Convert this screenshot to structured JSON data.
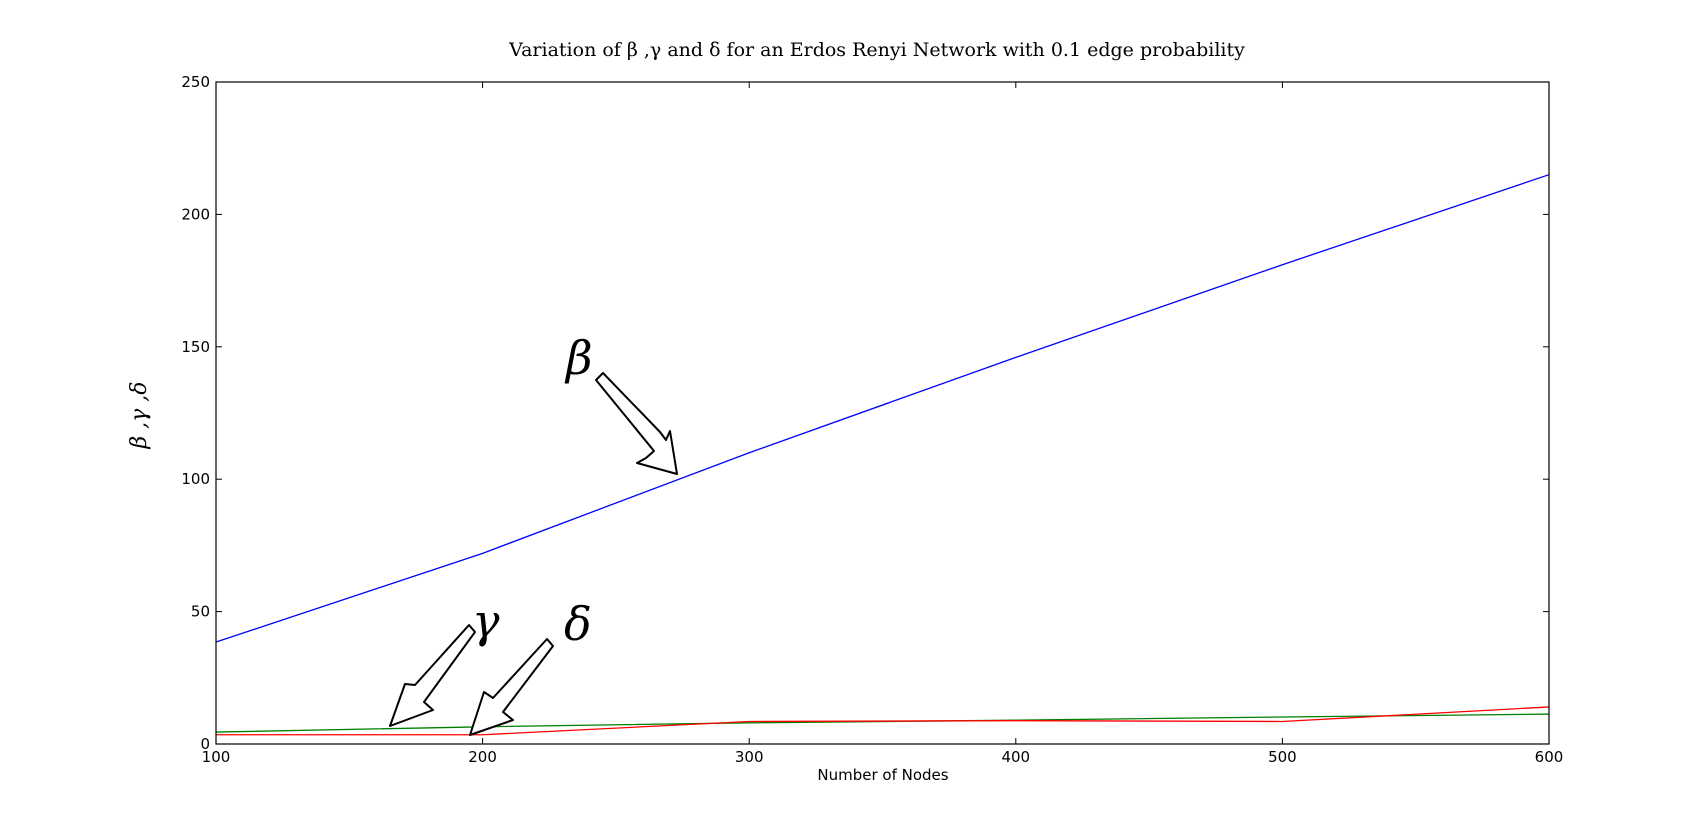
{
  "chart_data": {
    "type": "line",
    "title": "Variation of β ,γ and δ for an Erdos Renyi Network with 0.1 edge probability",
    "xlabel": "Number of Nodes",
    "ylabel": "β ,γ ,δ",
    "xlim": [
      100,
      600
    ],
    "ylim": [
      0,
      250
    ],
    "xticks": [
      100,
      200,
      300,
      400,
      500,
      600
    ],
    "yticks": [
      0,
      50,
      100,
      150,
      200,
      250
    ],
    "grid": false,
    "legend": "none",
    "x": [
      100,
      200,
      300,
      400,
      500,
      600
    ],
    "series": [
      {
        "name": "β",
        "color": "#0000ff",
        "values": [
          38.5,
          72,
          110,
          146,
          181,
          215
        ]
      },
      {
        "name": "γ",
        "color": "#008000",
        "values": [
          4.5,
          6.5,
          8,
          9,
          10.2,
          11.3
        ]
      },
      {
        "name": "δ",
        "color": "#ff0000",
        "values": [
          3.5,
          3.5,
          8.5,
          8.8,
          8.5,
          14
        ]
      }
    ],
    "annotations": [
      {
        "text": "β",
        "target": "blue line near x=270"
      },
      {
        "text": "γ",
        "target": "green line near x=165"
      },
      {
        "text": "δ",
        "target": "red line near x=195"
      }
    ]
  }
}
